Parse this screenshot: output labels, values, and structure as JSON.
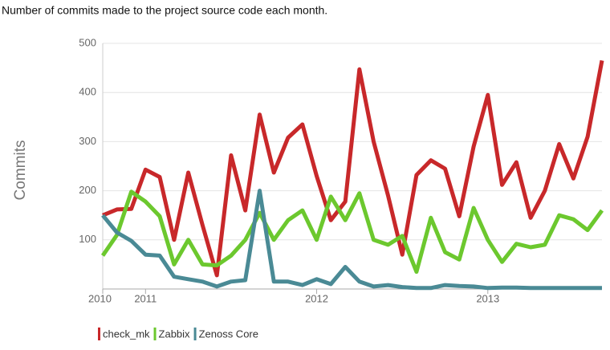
{
  "chart_data": {
    "type": "line",
    "title": "Number of commits made to the project source code each month.",
    "y_label": "Commits",
    "x": [
      2010.75,
      2010.833,
      2010.917,
      2011.0,
      2011.083,
      2011.167,
      2011.25,
      2011.333,
      2011.417,
      2011.5,
      2011.583,
      2011.667,
      2011.75,
      2011.833,
      2011.917,
      2012.0,
      2012.083,
      2012.167,
      2012.25,
      2012.333,
      2012.417,
      2012.5,
      2012.583,
      2012.667,
      2012.75,
      2012.833,
      2012.917,
      2013.0,
      2013.083,
      2013.167,
      2013.25,
      2013.333,
      2013.417,
      2013.5,
      2013.583,
      2013.667
    ],
    "series": [
      {
        "name": "check_mk",
        "color": "#c8282a",
        "values": [
          150,
          162,
          163,
          243,
          228,
          100,
          237,
          130,
          28,
          272,
          160,
          355,
          237,
          308,
          335,
          230,
          140,
          178,
          447,
          300,
          190,
          70,
          232,
          262,
          245,
          148,
          290,
          395,
          212,
          258,
          145,
          200,
          295,
          225,
          310,
          465
        ]
      },
      {
        "name": "Zabbix",
        "color": "#6cc82e",
        "values": [
          68,
          110,
          198,
          178,
          148,
          50,
          100,
          50,
          48,
          68,
          100,
          155,
          100,
          140,
          160,
          100,
          188,
          140,
          195,
          100,
          90,
          108,
          35,
          145,
          75,
          60,
          165,
          100,
          55,
          92,
          85,
          90,
          150,
          142,
          120,
          160
        ]
      },
      {
        "name": "Zenoss Core",
        "color": "#4a8a95",
        "values": [
          150,
          115,
          98,
          70,
          68,
          25,
          20,
          15,
          5,
          15,
          18,
          200,
          15,
          15,
          8,
          20,
          10,
          45,
          15,
          5,
          8,
          4,
          2,
          2,
          8,
          6,
          5,
          2,
          3,
          3,
          2,
          2,
          2,
          2,
          2,
          2
        ]
      }
    ],
    "xlim": [
      2010.75,
      2013.667
    ],
    "xticks": [
      {
        "value": 2010.75,
        "label": "2010"
      },
      2011,
      2012,
      2013
    ],
    "ylim": [
      0,
      500
    ],
    "yticks": [
      100,
      200,
      300,
      400,
      500
    ],
    "grid": true
  }
}
